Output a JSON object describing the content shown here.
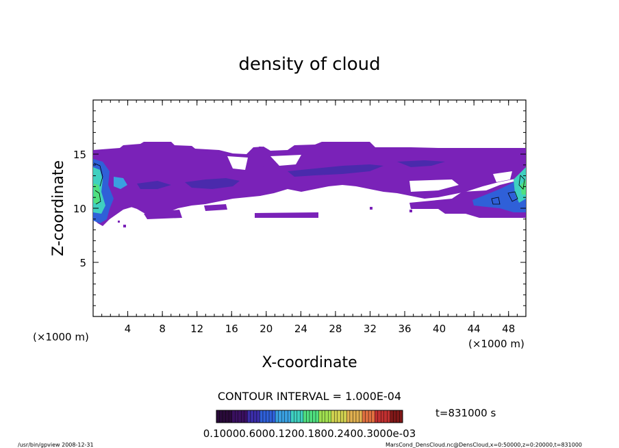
{
  "chart_data": {
    "type": "heatmap",
    "title": "density of cloud",
    "xlabel": "X-coordinate",
    "ylabel": "Z-coordinate",
    "x_unit_left": "(×1000 m)",
    "x_unit_right": "(×1000 m)",
    "xlim": [
      0,
      50
    ],
    "ylim": [
      0,
      20
    ],
    "x_ticks": [
      4,
      8,
      12,
      16,
      20,
      24,
      28,
      32,
      36,
      40,
      44,
      48
    ],
    "y_ticks": [
      5,
      10,
      15
    ],
    "contour_interval": "CONTOUR INTERVAL = 1.000E-04",
    "time_label": "t=831000 s",
    "colorbar_labels": "0.10000.6000.1200.1800.2400.3000e-03",
    "colorbar_colors": [
      "#2a0a3a",
      "#3a1060",
      "#3b2da8",
      "#2f60d8",
      "#3aa0e0",
      "#3fd0c0",
      "#50e080",
      "#a0e050",
      "#d0d050",
      "#e0b050",
      "#e07040",
      "#c03030",
      "#801818"
    ],
    "cloud_fill_color": "#7a22b8",
    "regions": [
      {
        "name": "main cloud deck",
        "x_range": [
          0,
          50
        ],
        "z_range": [
          9.5,
          15.9
        ],
        "level": "low"
      },
      {
        "name": "left boundary dense core",
        "x_range": [
          0,
          2
        ],
        "z_range": [
          9.5,
          14.5
        ],
        "level": "high"
      },
      {
        "name": "right boundary dense core",
        "x_range": [
          43,
          50
        ],
        "z_range": [
          9.6,
          14.0
        ],
        "level": "high"
      },
      {
        "name": "central enhanced band",
        "x_range": [
          10,
          34
        ],
        "z_range": [
          11.7,
          14.0
        ],
        "level": "medium"
      }
    ],
    "grid": false,
    "legend": "bottom"
  },
  "footer": {
    "left": "/usr/bin/gpview   2008-12-31",
    "right": "MarsCond_DensCloud.nc@DensCloud,x=0:50000,z=0:20000,t=831000"
  }
}
